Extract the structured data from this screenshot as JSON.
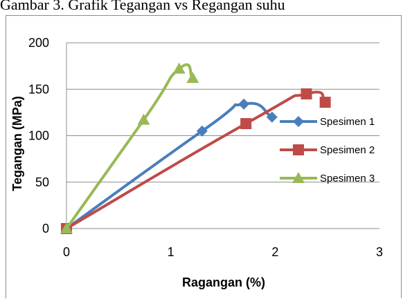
{
  "caption": "Gambar 3. Grafik Tegangan vs Regangan suhu",
  "chart_data": {
    "type": "line",
    "xlabel": "Ragangan (%)",
    "ylabel": "Tegangan (MPa)",
    "xlim": [
      0,
      3
    ],
    "ylim": [
      0,
      200
    ],
    "xticks": [
      "0",
      "1",
      "2",
      "3"
    ],
    "yticks": [
      "0",
      "50",
      "100",
      "150",
      "200"
    ],
    "grid": "horizontal",
    "legend_position": "right",
    "series": [
      {
        "name": "Spesimen 1",
        "color": "#4a7ebb",
        "marker": "diamond",
        "x": [
          0,
          1.3,
          1.7,
          1.97
        ],
        "y": [
          0,
          105,
          134,
          120
        ]
      },
      {
        "name": "Spesimen 2",
        "color": "#be4b48",
        "marker": "square",
        "x": [
          0,
          1.72,
          2.3,
          2.48
        ],
        "y": [
          0,
          113,
          145,
          136
        ]
      },
      {
        "name": "Spesimen 3",
        "color": "#98b954",
        "marker": "triangle",
        "x": [
          0,
          0.74,
          1.08,
          1.21
        ],
        "y": [
          0,
          117,
          172,
          162
        ]
      }
    ]
  }
}
